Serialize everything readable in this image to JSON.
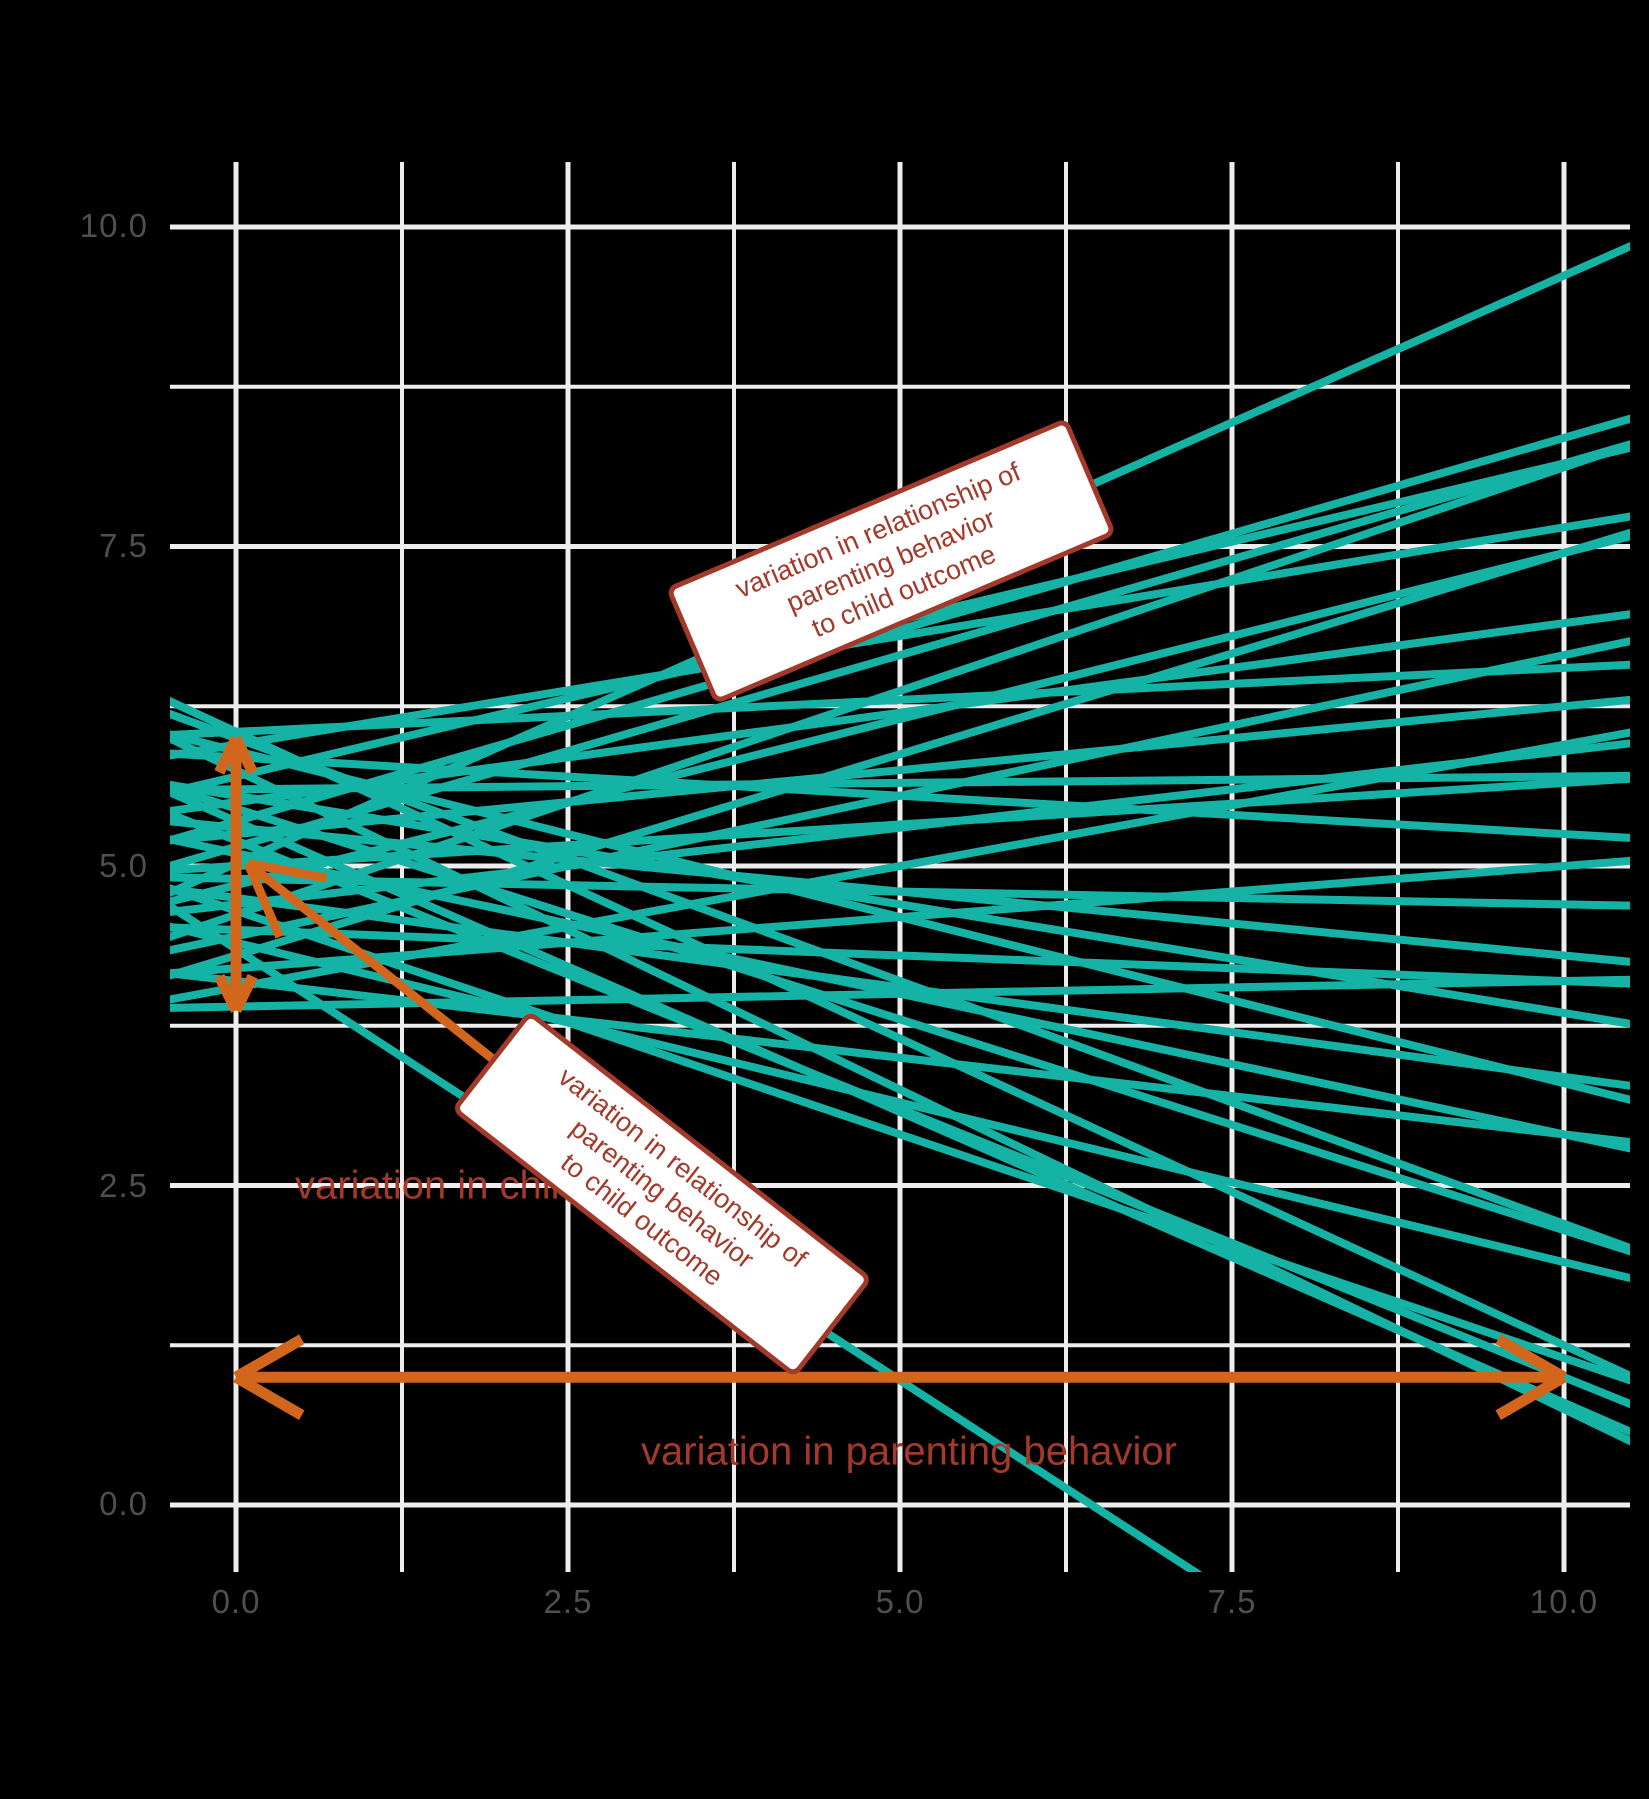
{
  "figure": {
    "background_color": "#000000",
    "grid_color": "#ededed",
    "line_color": "#15b3a6",
    "arrow_color": "#d2661c",
    "annotation_color": "#a3392b",
    "tick_color": "#4f4f4f"
  },
  "axes": {
    "x": {
      "ticks": [
        "0.0",
        "2.5",
        "5.0",
        "7.5",
        "10.0"
      ]
    },
    "y": {
      "ticks": [
        "10.0",
        "7.5",
        "5.0",
        "2.5",
        "0.0"
      ]
    }
  },
  "annotations": {
    "note_upper": {
      "text": "variation in relationship of\nparenting behavior\nto child outcome"
    },
    "note_lower": {
      "text": "variation in relationship of\nparenting behavior\nto child outcome"
    },
    "child_outcome": {
      "text": "variation in child outcome"
    },
    "parenting": {
      "text": "variation in parenting behavior"
    }
  },
  "chart_data": {
    "type": "line",
    "title": "",
    "xlabel": "",
    "ylabel": "",
    "xlim": [
      -0.51,
      10.52
    ],
    "ylim": [
      -0.52,
      10.51
    ],
    "x_major": [
      0,
      2.5,
      5,
      7.5,
      10
    ],
    "x_minor": [
      1.25,
      3.75,
      6.25,
      8.75
    ],
    "y_major": [
      0,
      2.5,
      5,
      7.5,
      10
    ],
    "y_minor": [
      1.25,
      3.75,
      6.25,
      8.75
    ],
    "grid": true,
    "legend": "none",
    "ablines_note": "each line is [intercept, slope] in data units",
    "ablines": [
      [
        5.02,
        0.46
      ],
      [
        4.62,
        0.35
      ],
      [
        5.35,
        0.3
      ],
      [
        5.15,
        0.3
      ],
      [
        4.3,
        0.315
      ],
      [
        5.7,
        0.245
      ],
      [
        4.85,
        0.26
      ],
      [
        5.95,
        0.17
      ],
      [
        4.45,
        0.22
      ],
      [
        5.5,
        0.14
      ],
      [
        4.05,
        0.19
      ],
      [
        5.25,
        0.1
      ],
      [
        4.7,
        0.12
      ],
      [
        6.05,
        0.05
      ],
      [
        5.0,
        0.065
      ],
      [
        4.2,
        0.08
      ],
      [
        5.6,
        0.01
      ],
      [
        4.9,
        -0.02
      ],
      [
        5.85,
        -0.06
      ],
      [
        4.5,
        -0.04
      ],
      [
        5.3,
        -0.1
      ],
      [
        3.9,
        0.02
      ],
      [
        4.75,
        -0.14
      ],
      [
        5.55,
        -0.17
      ],
      [
        4.1,
        -0.12
      ],
      [
        5.1,
        -0.22
      ],
      [
        5.9,
        -0.26
      ],
      [
        4.4,
        -0.25
      ],
      [
        5.45,
        -0.33
      ],
      [
        4.65,
        -0.35
      ],
      [
        6.0,
        -0.38
      ],
      [
        5.2,
        -0.42
      ],
      [
        6.05,
        -0.48
      ],
      [
        5.35,
        -0.455
      ],
      [
        5.75,
        -0.5
      ],
      [
        4.35,
        -0.675
      ]
    ],
    "arrows": [
      {
        "name": "child-outcome-range-arrow",
        "x1": 0,
        "y1": 3.87,
        "x2": 0,
        "y2": 6.0,
        "double": true,
        "width": 11,
        "barb": 38,
        "barb_angle": 26
      },
      {
        "name": "parenting-range-arrow",
        "x1": 0,
        "y1": 1.0,
        "x2": 10,
        "y2": 1.0,
        "double": true,
        "width": 11,
        "barb": 76,
        "barb_angle": 30
      },
      {
        "name": "slope-pointer-arrow",
        "x1": 3.21,
        "y1": 2.43,
        "x2": 0.09,
        "y2": 5.02,
        "double": false,
        "width": 9,
        "barb": 80,
        "barb_angle": 28
      }
    ]
  }
}
